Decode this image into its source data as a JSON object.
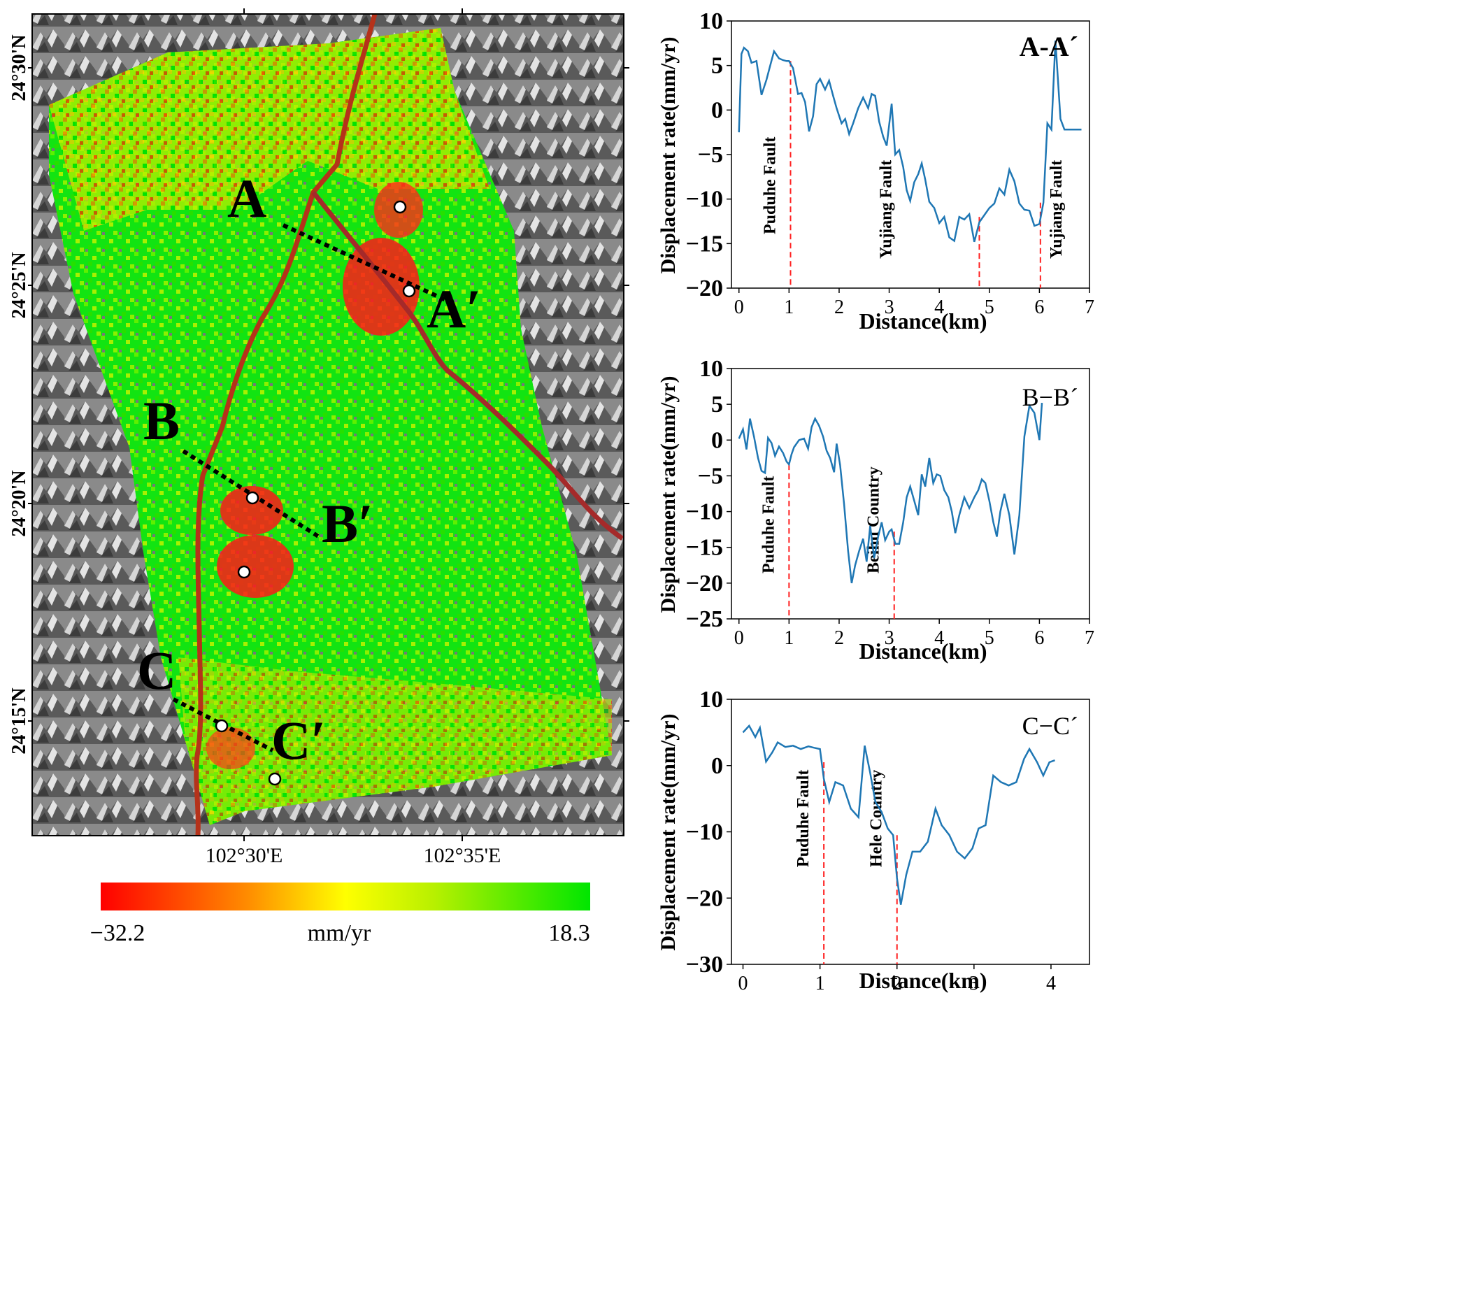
{
  "map": {
    "lat_labels": [
      "24°30'N",
      "24°25'N",
      "24°20'N",
      "24°15'N"
    ],
    "lon_labels": [
      "102°30'E",
      "102°35'E"
    ],
    "profile_labels": {
      "A": "A",
      "A2": "A′",
      "B": "B",
      "B2": "B′",
      "C": "C",
      "C2": "C′"
    },
    "colorbar": {
      "min_label": "−32.2",
      "unit_label": "mm/yr",
      "max_label": "18.3",
      "colors": [
        "#ff0000",
        "#ff7f00",
        "#ffff00",
        "#c8f000",
        "#00e000"
      ]
    },
    "fault_color": "#b5321a",
    "raster_colors": {
      "high": "#00e400",
      "mid": "#c6f000",
      "low": "#ff2020"
    }
  },
  "chart_data": [
    {
      "type": "line",
      "title": "A-A´",
      "xlabel": "Distance(km)",
      "ylabel": "Displacement rate(mm/yr)",
      "xlim": [
        -0.15,
        7
      ],
      "ylim": [
        -20,
        10
      ],
      "xticks": [
        0,
        1,
        2,
        3,
        4,
        5,
        6,
        7
      ],
      "yticks": [
        10,
        5,
        0,
        -5,
        -10,
        -15,
        -20
      ],
      "series": [
        {
          "x": [
            0,
            0.05,
            0.1,
            0.18,
            0.25,
            0.35,
            0.45,
            0.55,
            0.62,
            0.7,
            0.8,
            0.88,
            0.95,
            1.0,
            1.08,
            1.18,
            1.25,
            1.32,
            1.4,
            1.48,
            1.55,
            1.62,
            1.72,
            1.8,
            1.88,
            1.95,
            2.05,
            2.12,
            2.2,
            2.28,
            2.38,
            2.48,
            2.58,
            2.65,
            2.72,
            2.8,
            2.88,
            2.95,
            3.05,
            3.12,
            3.2,
            3.28,
            3.35,
            3.42,
            3.5,
            3.58,
            3.65,
            3.72,
            3.8,
            3.9,
            4.0,
            4.1,
            4.2,
            4.3,
            4.4,
            4.5,
            4.6,
            4.7,
            4.8,
            4.9,
            5.0,
            5.1,
            5.2,
            5.3,
            5.4,
            5.5,
            5.6,
            5.7,
            5.8,
            5.9,
            6.0,
            6.08,
            6.16,
            6.24,
            6.32,
            6.42,
            6.5,
            6.58,
            6.66,
            6.72,
            6.78,
            6.84
          ],
          "values": [
            -2.5,
            6.3,
            7.0,
            6.6,
            5.3,
            5.5,
            1.7,
            3.4,
            4.9,
            6.6,
            5.8,
            5.6,
            5.5,
            5.5,
            4.7,
            1.8,
            1.9,
            0.9,
            -2.4,
            -0.7,
            2.9,
            3.5,
            2.3,
            3.3,
            1.6,
            0.2,
            -1.5,
            -1.0,
            -2.7,
            -1.5,
            0.2,
            1.4,
            0.2,
            1.8,
            1.6,
            -1.3,
            -3.0,
            -4.0,
            0.7,
            -5.0,
            -4.5,
            -6.4,
            -9.0,
            -10.2,
            -8.1,
            -7.2,
            -6.0,
            -7.8,
            -10.3,
            -11.0,
            -12.7,
            -12.0,
            -14.3,
            -14.7,
            -12.0,
            -12.3,
            -11.7,
            -14.8,
            -12.6,
            -11.8,
            -11.0,
            -10.5,
            -8.8,
            -9.5,
            -6.7,
            -8.0,
            -10.5,
            -11.2,
            -11.3,
            -13.0,
            -12.8,
            -10.4,
            -1.5,
            -2.2,
            7.8,
            -1.0,
            -2.2,
            -2.2,
            -2.2,
            -2.2,
            -2.2,
            -2.2
          ]
        }
      ],
      "annotations": [
        "Puduhe Fault",
        "Yujiang Fault",
        "Yujiang Fault"
      ]
    },
    {
      "type": "line",
      "title": "B−B´",
      "xlabel": "Distance(km)",
      "ylabel": "Displacement rate(mm/yr)",
      "xlim": [
        -0.15,
        7
      ],
      "ylim": [
        -25,
        10
      ],
      "xticks": [
        0,
        1,
        2,
        3,
        4,
        5,
        6,
        7
      ],
      "yticks": [
        10,
        5,
        0,
        -5,
        -10,
        -15,
        -20,
        -25
      ],
      "series": [
        {
          "x": [
            0,
            0.08,
            0.15,
            0.22,
            0.3,
            0.38,
            0.45,
            0.52,
            0.58,
            0.65,
            0.72,
            0.8,
            0.88,
            0.95,
            1.0,
            1.05,
            1.1,
            1.2,
            1.3,
            1.38,
            1.45,
            1.52,
            1.6,
            1.68,
            1.75,
            1.82,
            1.9,
            1.95,
            2.02,
            2.1,
            2.18,
            2.25,
            2.32,
            2.4,
            2.48,
            2.55,
            2.62,
            2.7,
            2.78,
            2.85,
            2.92,
            3.0,
            3.05,
            3.12,
            3.2,
            3.28,
            3.35,
            3.42,
            3.5,
            3.58,
            3.65,
            3.72,
            3.8,
            3.88,
            3.95,
            4.02,
            4.1,
            4.18,
            4.25,
            4.32,
            4.4,
            4.5,
            4.6,
            4.7,
            4.78,
            4.85,
            4.92,
            5.0,
            5.08,
            5.15,
            5.22,
            5.3,
            5.4,
            5.5,
            5.6,
            5.7,
            5.8,
            5.9,
            6.0,
            6.05
          ],
          "values": [
            0.2,
            1.5,
            -1.3,
            3.0,
            0.5,
            -2.5,
            -4.3,
            -4.6,
            0.3,
            -0.4,
            -2.2,
            -0.9,
            -1.8,
            -3.0,
            -3.4,
            -2.0,
            -1.0,
            0.0,
            0.2,
            -1.2,
            1.8,
            3.0,
            2.0,
            0.5,
            -1.5,
            -2.5,
            -4.5,
            -0.5,
            -3.5,
            -9.0,
            -15.5,
            -20.0,
            -17.5,
            -15.5,
            -13.8,
            -17.0,
            -12.0,
            -16.5,
            -13.5,
            -11.5,
            -14.0,
            -12.8,
            -12.5,
            -14.5,
            -14.5,
            -11.5,
            -8.0,
            -6.5,
            -8.5,
            -10.5,
            -4.8,
            -6.5,
            -2.5,
            -6.0,
            -4.8,
            -5.0,
            -7.0,
            -8.0,
            -10.0,
            -13.0,
            -10.5,
            -8.0,
            -9.5,
            -8.0,
            -7.0,
            -5.5,
            -6.0,
            -8.5,
            -11.5,
            -13.5,
            -10.0,
            -7.5,
            -10.5,
            -16.0,
            -10.5,
            0.5,
            4.8,
            3.8,
            0.0,
            5.2
          ]
        }
      ],
      "annotations": [
        "Puduhe Fault",
        "Beihu Country"
      ]
    },
    {
      "type": "line",
      "title": "C−C´",
      "xlabel": "Distance(km)",
      "ylabel": "Displacement rate(mm/yr)",
      "xlim": [
        -0.15,
        4.5
      ],
      "ylim": [
        -30,
        10
      ],
      "xticks": [
        0,
        1,
        2,
        3,
        4
      ],
      "yticks": [
        10,
        0,
        -10,
        -20,
        -30
      ],
      "series": [
        {
          "x": [
            0,
            0.08,
            0.16,
            0.22,
            0.3,
            0.38,
            0.45,
            0.55,
            0.65,
            0.75,
            0.85,
            0.92,
            1.0,
            1.05,
            1.12,
            1.2,
            1.3,
            1.4,
            1.5,
            1.58,
            1.65,
            1.72,
            1.8,
            1.88,
            1.95,
            2.0,
            2.05,
            2.12,
            2.2,
            2.3,
            2.4,
            2.5,
            2.58,
            2.68,
            2.78,
            2.88,
            2.98,
            3.06,
            3.15,
            3.25,
            3.35,
            3.45,
            3.55,
            3.65,
            3.72,
            3.82,
            3.9,
            3.98,
            4.05
          ],
          "values": [
            5.0,
            6.0,
            4.3,
            5.7,
            0.6,
            2.0,
            3.5,
            2.8,
            3.0,
            2.5,
            2.9,
            2.7,
            2.5,
            -2.0,
            -5.5,
            -2.5,
            -3.0,
            -6.5,
            -7.8,
            3.0,
            -1.0,
            -5.5,
            -7.0,
            -9.5,
            -10.5,
            -17.0,
            -21.0,
            -16.5,
            -13.0,
            -13.0,
            -11.5,
            -6.5,
            -9.0,
            -10.5,
            -13.0,
            -14.0,
            -12.5,
            -9.5,
            -9.0,
            -1.5,
            -2.5,
            -3.0,
            -2.5,
            1.0,
            2.5,
            0.5,
            -1.5,
            0.5,
            0.8
          ]
        }
      ],
      "annotations": [
        "Puduhe Fault",
        "Hele Country"
      ]
    }
  ]
}
